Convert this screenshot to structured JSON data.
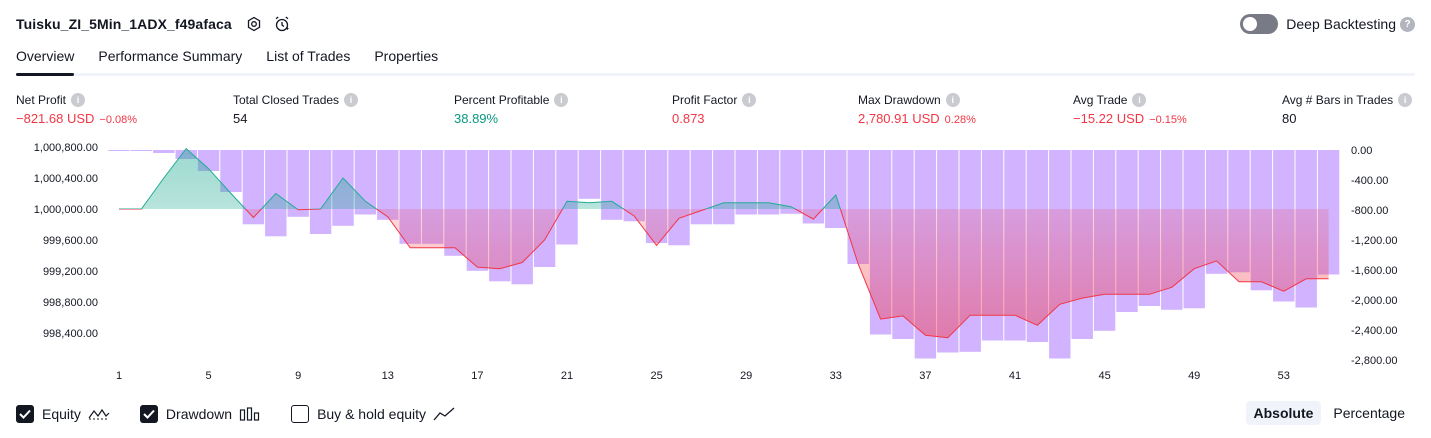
{
  "header": {
    "title": "Tuisku_ZI_5Min_1ADX_f49afaca",
    "deep_backtesting_label": "Deep Backtesting",
    "deep_backtesting_enabled": false
  },
  "tabs": [
    "Overview",
    "Performance Summary",
    "List of Trades",
    "Properties"
  ],
  "active_tab": "Overview",
  "metrics": {
    "net_profit": {
      "label": "Net Profit",
      "value": "−821.68 USD",
      "sub": "−0.08%"
    },
    "total_closed_trades": {
      "label": "Total Closed Trades",
      "value": "54"
    },
    "percent_profitable": {
      "label": "Percent Profitable",
      "value": "38.89%"
    },
    "profit_factor": {
      "label": "Profit Factor",
      "value": "0.873"
    },
    "max_drawdown": {
      "label": "Max Drawdown",
      "value": "2,780.91 USD",
      "sub": "0.28%"
    },
    "avg_trade": {
      "label": "Avg Trade",
      "value": "−15.22 USD",
      "sub": "−0.15%"
    },
    "avg_bars": {
      "label": "Avg # Bars in Trades",
      "value": "80"
    }
  },
  "legend": {
    "equity": {
      "label": "Equity",
      "checked": true
    },
    "drawdown": {
      "label": "Drawdown",
      "checked": true
    },
    "buy_hold": {
      "label": "Buy & hold equity",
      "checked": false
    }
  },
  "mode": {
    "absolute": "Absolute",
    "percentage": "Percentage",
    "active": "Absolute"
  },
  "colors": {
    "equity_up": "#22ab94",
    "equity_down": "#f23645",
    "drawdown_bar": "#d1b3ff",
    "grid": "#f0f3fa"
  },
  "chart_data": {
    "type": "area",
    "x_ticks": [
      "1",
      "5",
      "9",
      "13",
      "17",
      "21",
      "25",
      "29",
      "33",
      "37",
      "41",
      "45",
      "49",
      "53"
    ],
    "x_range": [
      1,
      56
    ],
    "y_left_ticks": [
      "1,000,800.00",
      "1,000,400.00",
      "1,000,000.00",
      "999,600.00",
      "999,200.00",
      "998,800.00",
      "998,400.00"
    ],
    "y_left_range": [
      998,
      300,
      1000,
      850
    ],
    "y_right_ticks": [
      "0.00",
      "-400.00",
      "-800.00",
      "-1,200.00",
      "-1,600.00",
      "-2,000.00",
      "-2,400.00",
      "-2,800.00"
    ],
    "baseline": 1000000,
    "series": [
      {
        "name": "Equity",
        "x": [
          1,
          2,
          3,
          4,
          5,
          6,
          7,
          8,
          9,
          10,
          11,
          12,
          13,
          14,
          15,
          16,
          17,
          18,
          19,
          20,
          21,
          22,
          23,
          24,
          25,
          26,
          27,
          28,
          29,
          30,
          31,
          32,
          33,
          34,
          35,
          36,
          37,
          38,
          39,
          40,
          41,
          42,
          43,
          44,
          45,
          46,
          47,
          48,
          49,
          50,
          51,
          52,
          53,
          54,
          55
        ],
        "values": [
          1000000,
          1000000,
          1000400,
          1000780,
          1000520,
          1000200,
          999890,
          1000200,
          999990,
          1000000,
          1000400,
          1000100,
          999900,
          999500,
          999500,
          999500,
          999250,
          999230,
          999310,
          999600,
          1000100,
          1000080,
          1000100,
          999910,
          999530,
          999880,
          999980,
          1000080,
          1000080,
          1000080,
          1000030,
          999870,
          1000180,
          999290,
          998580,
          998620,
          998370,
          998340,
          998630,
          998630,
          998630,
          998500,
          998770,
          998850,
          998900,
          998900,
          998900,
          998990,
          999230,
          999330,
          999060,
          999060,
          998940,
          999100,
          999100
        ]
      },
      {
        "name": "Drawdown",
        "x": [
          1,
          2,
          3,
          4,
          5,
          6,
          7,
          8,
          9,
          10,
          11,
          12,
          13,
          14,
          15,
          16,
          17,
          18,
          19,
          20,
          21,
          22,
          23,
          24,
          25,
          26,
          27,
          28,
          29,
          30,
          31,
          32,
          33,
          34,
          35,
          36,
          37,
          38,
          39,
          40,
          41,
          42,
          43,
          44,
          45,
          46,
          47,
          48,
          49,
          50,
          51,
          52,
          53,
          54,
          55
        ],
        "values": [
          0,
          -10,
          -40,
          -120,
          -280,
          -560,
          -990,
          -1150,
          -890,
          -1120,
          -1010,
          -860,
          -930,
          -1250,
          -1250,
          -1410,
          -1610,
          -1750,
          -1790,
          -1560,
          -1260,
          -650,
          -930,
          -950,
          -1240,
          -1270,
          -990,
          -990,
          -860,
          -860,
          -850,
          -980,
          -1040,
          -1520,
          -2460,
          -2520,
          -2780,
          -2700,
          -2690,
          -2540,
          -2540,
          -2560,
          -2780,
          -2520,
          -2410,
          -2160,
          -2080,
          -2130,
          -2110,
          -1650,
          -1630,
          -1870,
          -2020,
          -2100,
          -1660
        ]
      }
    ]
  }
}
